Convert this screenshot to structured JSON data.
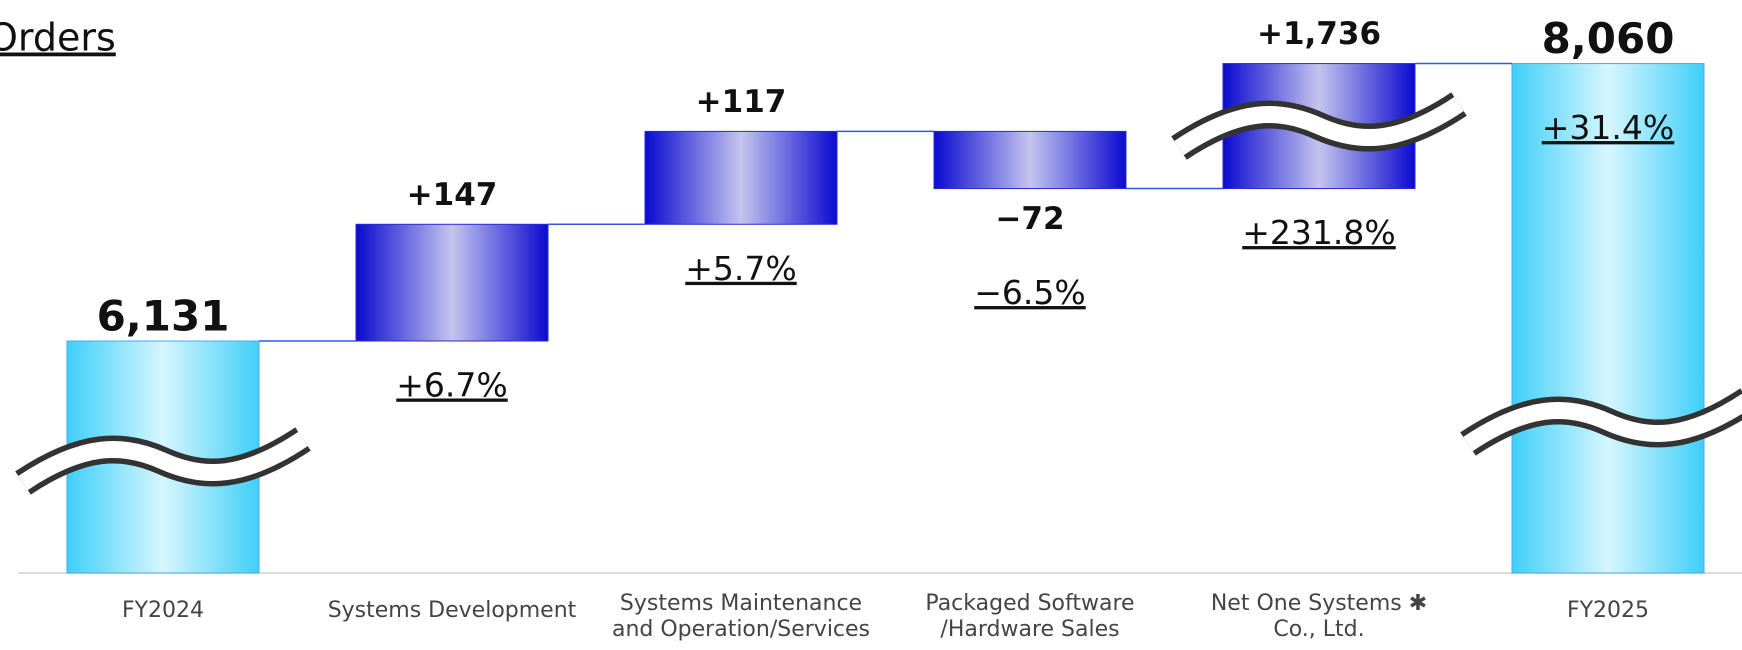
{
  "chart_data": {
    "type": "waterfall",
    "title": "Orders",
    "categories": [
      [
        "FY2024"
      ],
      [
        "Systems Development"
      ],
      [
        "Systems Maintenance",
        "and Operation/Services"
      ],
      [
        "Packaged Software",
        "/Hardware Sales"
      ],
      [
        "Net One Systems ✱",
        "Co., Ltd."
      ],
      [
        "FY2025"
      ]
    ],
    "values": [
      6131,
      147,
      117,
      -72,
      1736,
      8060
    ],
    "value_labels": [
      "6,131",
      "+147",
      "+117",
      "−72",
      "+1,736",
      "8,060"
    ],
    "change_labels": [
      null,
      "+6.7%",
      "+5.7%",
      "−6.5%",
      "+231.8%",
      "+31.4%"
    ],
    "total_color": "#3fcff8",
    "delta_color": "#0a0ad0",
    "broken_axis": true
  }
}
